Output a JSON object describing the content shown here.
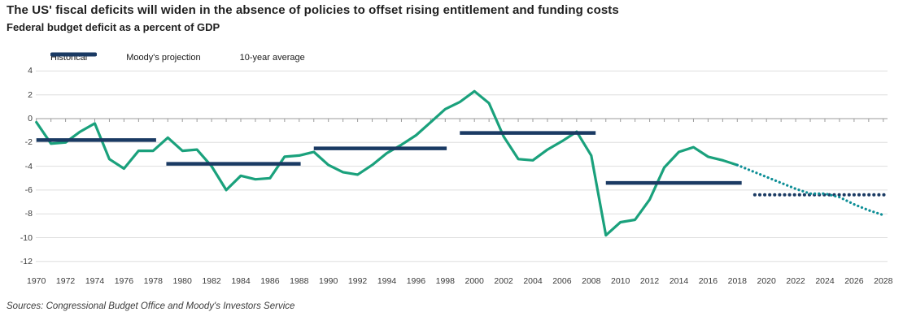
{
  "header": {
    "title": "The US' fiscal deficits will widen in the absence of policies to offset rising entitlement and funding costs",
    "subtitle": "Federal budget deficit as a percent of GDP"
  },
  "legend": [
    {
      "label": "Historical",
      "style": "solid",
      "color": "#1aa17c"
    },
    {
      "label": "Moody's projection",
      "style": "dotted",
      "color": "#0d8e96"
    },
    {
      "label": "10-year average",
      "style": "solid-thick",
      "color": "#1a3a63"
    }
  ],
  "chart_data": {
    "type": "line",
    "title": "The US' fiscal deficits will widen in the absence of policies to offset rising entitlement and funding costs",
    "subtitle": "Federal budget deficit as a percent of GDP",
    "xlabel": "",
    "ylabel": "Percent of GDP",
    "xlim": [
      1970,
      2028
    ],
    "ylim": [
      -12,
      4
    ],
    "grid": "horizontal",
    "gridline_color": "#dedede",
    "axis_color": "#9b9b9b",
    "legend_position": "top-left",
    "xticks": [
      1970,
      1972,
      1974,
      1976,
      1978,
      1980,
      1982,
      1984,
      1986,
      1988,
      1990,
      1992,
      1994,
      1996,
      1998,
      2000,
      2002,
      2004,
      2006,
      2008,
      2010,
      2012,
      2014,
      2016,
      2018,
      2020,
      2022,
      2024,
      2026,
      2028
    ],
    "yticks": [
      4,
      2,
      0,
      -2,
      -4,
      -6,
      -8,
      -10,
      -12
    ],
    "series": [
      {
        "name": "Historical",
        "style": "solid",
        "color": "#1aa17c",
        "years": [
          1970,
          1971,
          1972,
          1973,
          1974,
          1975,
          1976,
          1977,
          1978,
          1979,
          1980,
          1981,
          1982,
          1983,
          1984,
          1985,
          1986,
          1987,
          1988,
          1989,
          1990,
          1991,
          1992,
          1993,
          1994,
          1995,
          1996,
          1997,
          1998,
          1999,
          2000,
          2001,
          2002,
          2003,
          2004,
          2005,
          2006,
          2007,
          2008,
          2009,
          2010,
          2011,
          2012,
          2013,
          2014,
          2015,
          2016,
          2017,
          2018
        ],
        "values": [
          -0.3,
          -2.1,
          -2.0,
          -1.1,
          -0.4,
          -3.4,
          -4.2,
          -2.7,
          -2.7,
          -1.6,
          -2.7,
          -2.6,
          -4.0,
          -6.0,
          -4.8,
          -5.1,
          -5.0,
          -3.2,
          -3.1,
          -2.8,
          -3.9,
          -4.5,
          -4.7,
          -3.9,
          -2.9,
          -2.2,
          -1.4,
          -0.3,
          0.8,
          1.4,
          2.3,
          1.3,
          -1.5,
          -3.4,
          -3.5,
          -2.6,
          -1.9,
          -1.1,
          -3.1,
          -9.8,
          -8.7,
          -8.5,
          -6.8,
          -4.1,
          -2.8,
          -2.4,
          -3.2,
          -3.5,
          -3.9
        ]
      },
      {
        "name": "Moody's projection",
        "style": "dotted",
        "color": "#0d8e96",
        "years": [
          2018,
          2019,
          2020,
          2021,
          2022,
          2023,
          2024,
          2025,
          2026,
          2027,
          2028
        ],
        "values": [
          -3.9,
          -4.4,
          -4.9,
          -5.4,
          -5.9,
          -6.3,
          -6.3,
          -6.6,
          -7.2,
          -7.7,
          -8.1
        ]
      },
      {
        "name": "10-year average",
        "style": "segments",
        "color": "#1a3a63",
        "segments": [
          {
            "from": 1970.0,
            "to": 1978.2,
            "value": -1.8,
            "line": "solid"
          },
          {
            "from": 1978.9,
            "to": 1988.1,
            "value": -3.8,
            "line": "solid"
          },
          {
            "from": 1989.0,
            "to": 1998.1,
            "value": -2.5,
            "line": "solid"
          },
          {
            "from": 1999.0,
            "to": 2008.3,
            "value": -1.2,
            "line": "solid"
          },
          {
            "from": 2009.0,
            "to": 2018.3,
            "value": -5.4,
            "line": "solid"
          },
          {
            "from": 2019.2,
            "to": 2028.2,
            "value": -6.4,
            "line": "dotted"
          }
        ]
      }
    ]
  },
  "footer": {
    "sources": "Sources: Congressional Budget Office and Moody's Investors Service"
  }
}
